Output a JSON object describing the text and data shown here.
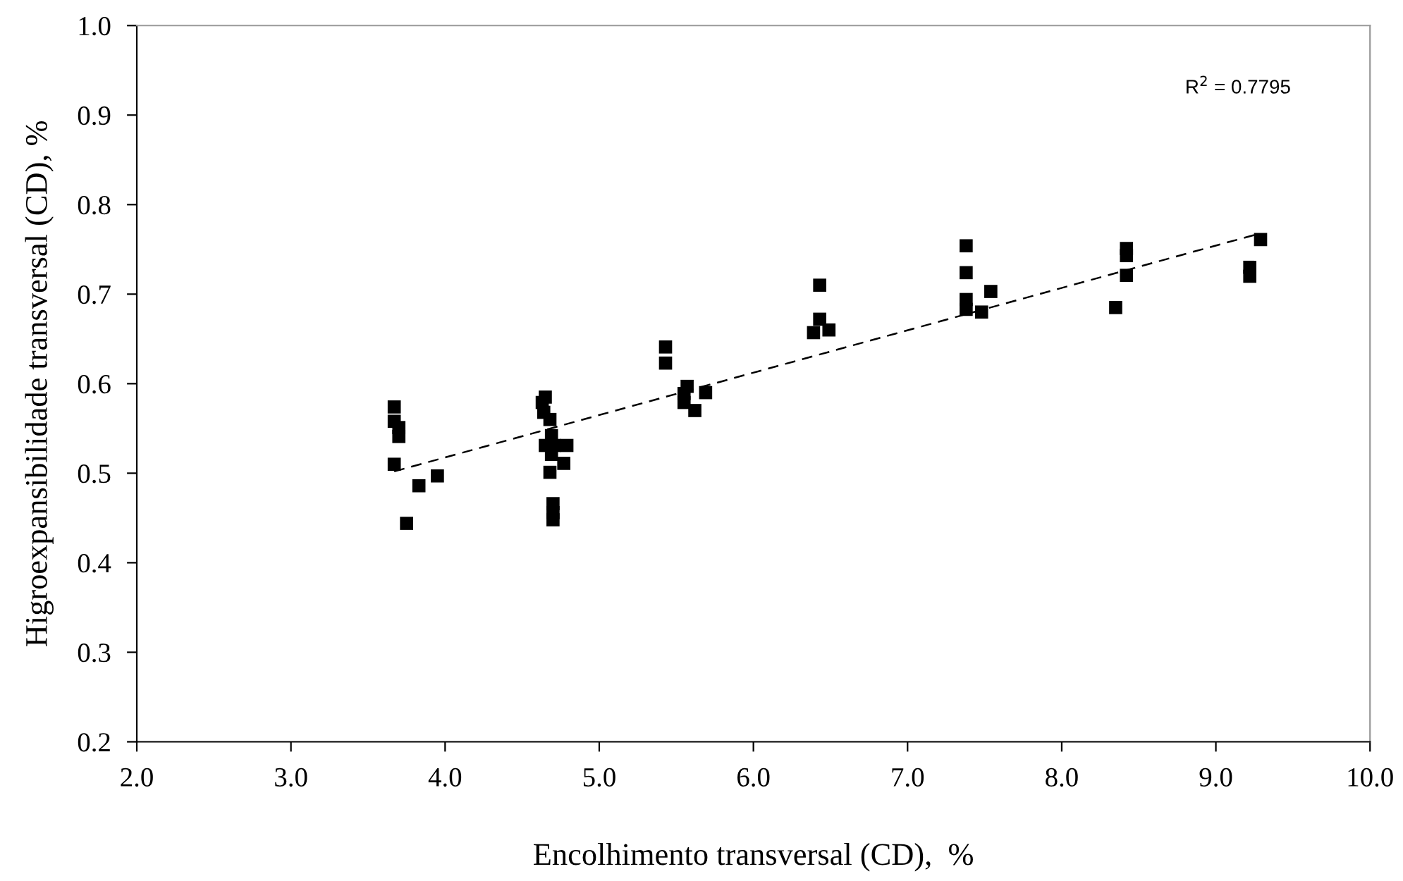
{
  "chart_data": {
    "type": "scatter",
    "xlabel": "Encolhimento transversal (CD),  %",
    "ylabel": "Higroexpansibilidade transversal (CD), %",
    "series": [
      {
        "color": "#000000",
        "marker": "square",
        "x": [
          3.67,
          3.67,
          3.7,
          3.7,
          3.67,
          3.83,
          3.95,
          3.75,
          4.65,
          4.63,
          4.64,
          4.68,
          4.69,
          4.65,
          4.71,
          4.79,
          4.69,
          4.77,
          4.68,
          4.7,
          4.7,
          4.7,
          5.43,
          5.43,
          5.57,
          5.55,
          5.55,
          5.69,
          5.62,
          6.43,
          6.43,
          6.39,
          6.49,
          7.38,
          7.38,
          7.38,
          7.38,
          7.48,
          7.54,
          8.42,
          8.42,
          8.42,
          8.35,
          9.29,
          9.22,
          9.22
        ],
        "values": [
          0.574,
          0.558,
          0.551,
          0.541,
          0.51,
          0.486,
          0.497,
          0.444,
          0.585,
          0.579,
          0.568,
          0.56,
          0.542,
          0.531,
          0.531,
          0.531,
          0.521,
          0.511,
          0.501,
          0.466,
          0.456,
          0.448,
          0.641,
          0.623,
          0.597,
          0.589,
          0.579,
          0.59,
          0.57,
          0.71,
          0.672,
          0.657,
          0.66,
          0.754,
          0.724,
          0.694,
          0.683,
          0.68,
          0.703,
          0.751,
          0.743,
          0.721,
          0.685,
          0.761,
          0.73,
          0.72
        ]
      },
      {
        "type": "line",
        "color": "#000000",
        "line_style": "dashed",
        "marker": "none",
        "x": [
          3.67,
          9.29
        ],
        "values": [
          0.502,
          0.768
        ]
      }
    ],
    "annotations": [
      "R$^{2}$ = 0.7795"
    ],
    "xlim": [
      2.0,
      10.0
    ],
    "xticks": [
      {
        "value": 2,
        "label": "2.0"
      },
      {
        "value": 3,
        "label": "3.0"
      },
      {
        "value": 4,
        "label": "4.0"
      },
      {
        "value": 5,
        "label": "5.0"
      },
      {
        "value": 6,
        "label": "6.0"
      },
      {
        "value": 7,
        "label": "7.0"
      },
      {
        "value": 8,
        "label": "8.0"
      },
      {
        "value": 9,
        "label": "9.0"
      },
      {
        "value": 10,
        "label": "10.0"
      }
    ],
    "ylim": [
      0.2,
      1.0
    ],
    "yticks": [
      {
        "value": 0.2,
        "label": "0.2"
      },
      {
        "value": 0.3,
        "label": "0.3"
      },
      {
        "value": 0.4,
        "label": "0.4"
      },
      {
        "value": 0.5,
        "label": "0.5"
      },
      {
        "value": 0.6,
        "label": "0.6"
      },
      {
        "value": 0.7,
        "label": "0.7"
      },
      {
        "value": 0.8,
        "label": "0.8"
      },
      {
        "value": 0.9,
        "label": "0.9"
      },
      {
        "value": 1.0,
        "label": "1.0"
      }
    ],
    "grid": false,
    "legend": false
  }
}
